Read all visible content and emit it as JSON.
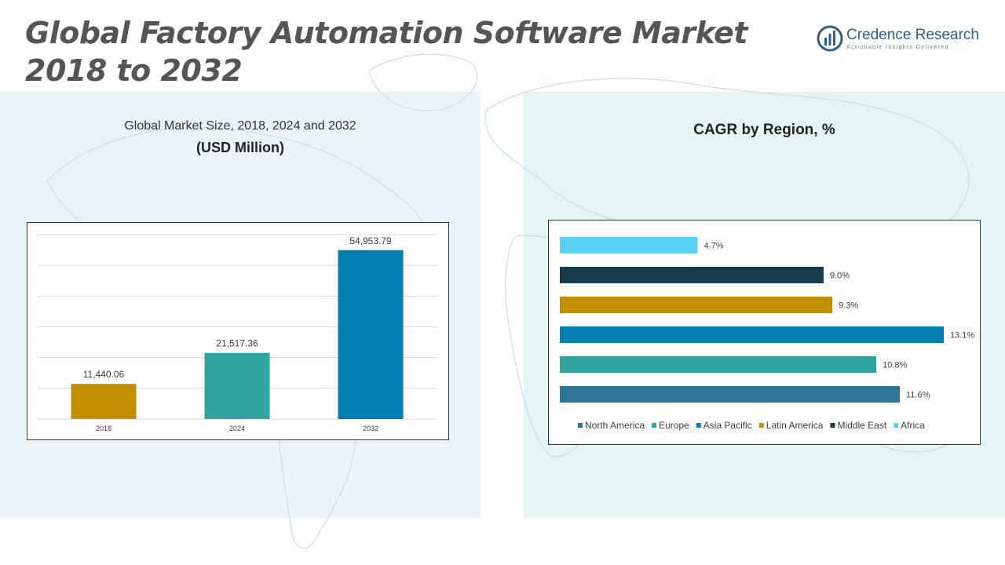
{
  "header": {
    "title_line1": "Global Factory Automation Software Market",
    "title_line2": "2018 to 2032"
  },
  "logo": {
    "name": "Credence Research",
    "tagline": "Actionable Insights Delivered",
    "icon": "bar-chart-circle-icon",
    "color": "#2d5f8a"
  },
  "left_panel": {
    "subtitle_line1": "Global Market Size, 2018, 2024 and 2032",
    "subtitle_line2": "(USD Million)"
  },
  "right_panel": {
    "subtitle": "CAGR by Region, %"
  },
  "chart_data": [
    {
      "type": "bar",
      "title": "Global Market Size, 2018, 2024 and 2032 (USD Million)",
      "categories": [
        "2018",
        "2024",
        "2032"
      ],
      "values": [
        11440.06,
        21517.36,
        54953.79
      ],
      "labels": [
        "11,440.06",
        "21,517.36",
        "54,953.79"
      ],
      "colors": [
        "#bf8f00",
        "#2fa4a0",
        "#0080b0"
      ],
      "ylim": [
        0,
        60000
      ],
      "grid": true
    },
    {
      "type": "bar",
      "orientation": "horizontal",
      "title": "CAGR by Region, %",
      "categories": [
        "Africa",
        "Middle East",
        "Latin America",
        "Asia Pacific",
        "Europe",
        "North America"
      ],
      "values": [
        4.7,
        9.0,
        9.3,
        13.1,
        10.8,
        11.6
      ],
      "labels": [
        "4.7%",
        "9.0%",
        "9.3%",
        "13.1%",
        "10.8%",
        "11.6%"
      ],
      "colors": [
        "#5bd0f5",
        "#163c4b",
        "#bf8f00",
        "#0080b0",
        "#2fa4a0",
        "#2e7598"
      ],
      "legend": [
        "North America",
        "Europe",
        "Asia Pacific",
        "Latin America",
        "Middle East",
        "Africa"
      ],
      "legend_colors": [
        "#2e7598",
        "#2fa4a0",
        "#0080b0",
        "#bf8f00",
        "#163c4b",
        "#5bd0f5"
      ],
      "legend_position": "bottom",
      "xlim": [
        0,
        13.1
      ]
    }
  ]
}
